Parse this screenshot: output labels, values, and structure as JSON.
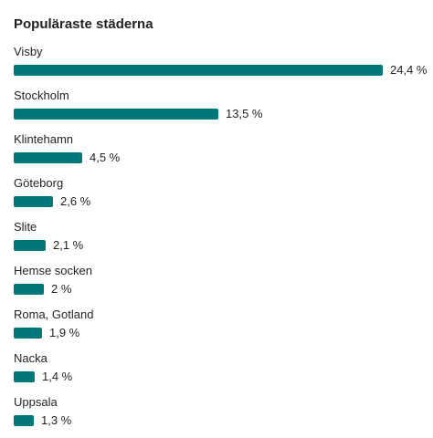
{
  "panel": {
    "title": "Populäraste städerna",
    "accent_color": "#00777a"
  },
  "cities": [
    {
      "name": "Visby",
      "percent_label": "24,4 %",
      "value": 24.4
    },
    {
      "name": "Stockholm",
      "percent_label": "13,5 %",
      "value": 13.5
    },
    {
      "name": "Klintehamn",
      "percent_label": "4,5 %",
      "value": 4.5
    },
    {
      "name": "Göteborg",
      "percent_label": "2,6 %",
      "value": 2.6
    },
    {
      "name": "Slite",
      "percent_label": "2,1 %",
      "value": 2.1
    },
    {
      "name": "Hemse socken",
      "percent_label": "2 %",
      "value": 2
    },
    {
      "name": "Roma, Gotland",
      "percent_label": "1,9 %",
      "value": 1.9
    },
    {
      "name": "Nacka",
      "percent_label": "1,4 %",
      "value": 1.4
    },
    {
      "name": "Uppsala",
      "percent_label": "1,3 %",
      "value": 1.3
    }
  ]
}
